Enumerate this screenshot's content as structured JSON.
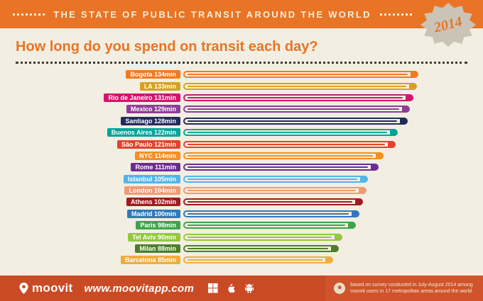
{
  "header": {
    "band_title": "THE STATE OF PUBLIC TRANSIT AROUND THE WORLD",
    "badge_year": "2014",
    "question": "How long do you spend on transit each day?"
  },
  "chart_data": {
    "type": "bar",
    "orientation": "horizontal",
    "unit": "min",
    "title": "How long do you spend on transit each day?",
    "value_range": [
      0,
      134
    ],
    "items": [
      {
        "city": "Bogota",
        "value": 134,
        "label": "Bogota 134min",
        "color": "#F4791F"
      },
      {
        "city": "LA",
        "value": 133,
        "label": "LA 133min",
        "color": "#D8A11D"
      },
      {
        "city": "Rio de Janeiro",
        "value": 131,
        "label": "Rio de Janeiro 131min",
        "color": "#D4156B"
      },
      {
        "city": "Mexico",
        "value": 129,
        "label": "Mexico 129min",
        "color": "#8E3D97"
      },
      {
        "city": "Santiago",
        "value": 128,
        "label": "Santiago 128min",
        "color": "#232A5C"
      },
      {
        "city": "Buenos Aires",
        "value": 122,
        "label": "Buenos Aires 122min",
        "color": "#00A49A"
      },
      {
        "city": "São Paulo",
        "value": 121,
        "label": "São Paulo 121min",
        "color": "#E2432C"
      },
      {
        "city": "NYC",
        "value": 114,
        "label": "NYC 114min",
        "color": "#F78E1E"
      },
      {
        "city": "Rome",
        "value": 111,
        "label": "Rome 111min",
        "color": "#6D2C90"
      },
      {
        "city": "Istanbul",
        "value": 105,
        "label": "Istanbul 105min",
        "color": "#54B5E5"
      },
      {
        "city": "London",
        "value": 104,
        "label": "London 104min",
        "color": "#F09A76"
      },
      {
        "city": "Athens",
        "value": 102,
        "label": "Athens 102min",
        "color": "#A01B20"
      },
      {
        "city": "Madrid",
        "value": 100,
        "label": "Madrid 100min",
        "color": "#2F79BE"
      },
      {
        "city": "Paris",
        "value": 98,
        "label": "Paris 98min",
        "color": "#3EA449"
      },
      {
        "city": "Tel Aviv",
        "value": 90,
        "label": "Tel Aviv 90min",
        "color": "#93C83D"
      },
      {
        "city": "Milan",
        "value": 88,
        "label": "Milan 88min",
        "color": "#4C7E2B"
      },
      {
        "city": "Barcelona",
        "value": 85,
        "label": "Barcelona 85min",
        "color": "#EFAD3B"
      }
    ]
  },
  "footer": {
    "logo_text": "moovit",
    "website": "www.moovitapp.com",
    "note_star": "★",
    "note_line1": "based on survey conducted in July-August 2014 among",
    "note_line2": "moovit users in 17 metropolitan areas around the world.",
    "colors": {
      "band": "#E97425",
      "footer": "#C94B26",
      "background": "#F3EEE2",
      "badge": "#CBC3B5"
    }
  }
}
